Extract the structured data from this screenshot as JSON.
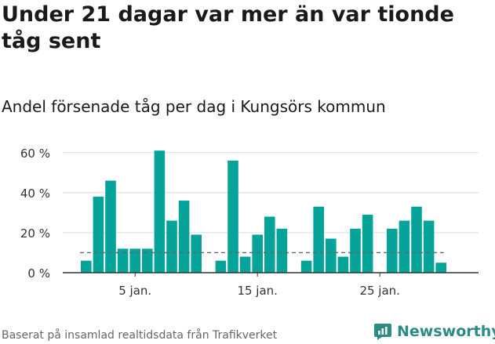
{
  "title": "Under 21 dagar var mer än var tionde tåg sent",
  "subtitle": "Andel försenade tåg per dag i Kungsörs kommun",
  "source": "Baserat på insamlad realtidsdata från Trafikverket",
  "brand": "Newsworthy",
  "colors": {
    "bar": "#05a39a",
    "grid": "#dddddd",
    "axis": "#333333",
    "reference": "#666666",
    "brand": "#2a8c85"
  },
  "chart_data": {
    "type": "bar",
    "x": [
      1,
      2,
      3,
      4,
      5,
      6,
      7,
      8,
      9,
      10,
      11,
      12,
      13,
      14,
      15,
      16,
      17,
      18,
      19,
      20,
      21,
      22,
      23,
      24,
      25,
      26,
      27,
      28,
      29,
      30,
      31
    ],
    "values": [
      6,
      38,
      46,
      12,
      12,
      12,
      61,
      26,
      36,
      19,
      null,
      6,
      56,
      8,
      19,
      28,
      22,
      null,
      6,
      33,
      17,
      8,
      22,
      29,
      null,
      22,
      26,
      33,
      26,
      5,
      null
    ],
    "xticks": [
      5,
      15,
      25
    ],
    "xtick_labels": [
      "5 jan.",
      "15 jan.",
      "25 jan."
    ],
    "yticks": [
      0,
      20,
      40,
      60
    ],
    "ytick_labels": [
      "0 %",
      "20 %",
      "40 %",
      "60 %"
    ],
    "ylim": [
      0,
      65
    ],
    "reference_line": 10,
    "grid": true
  }
}
